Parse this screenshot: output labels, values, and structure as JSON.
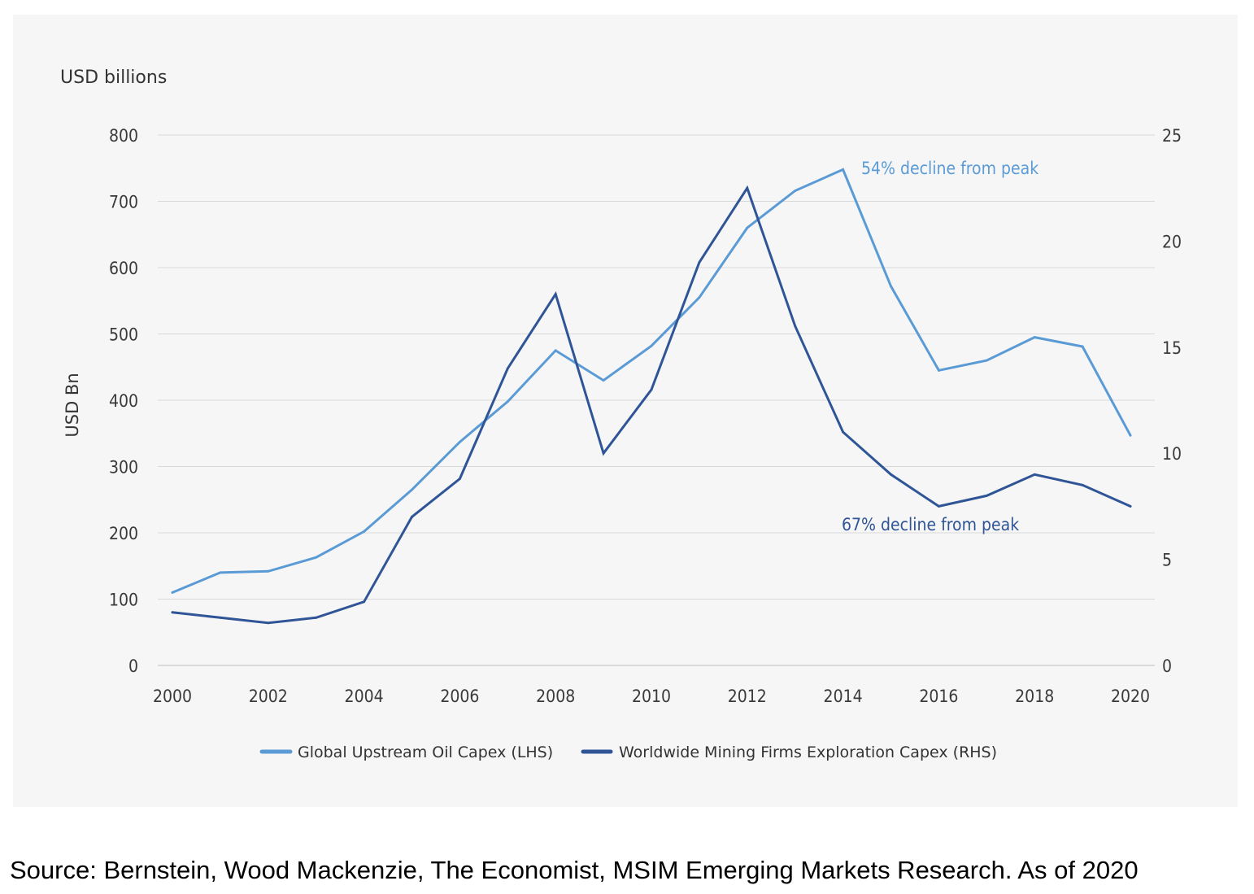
{
  "chart_data": {
    "type": "line",
    "unit_label": "USD billions",
    "ylabel": "USD Bn",
    "x": [
      2000,
      2001,
      2002,
      2003,
      2004,
      2005,
      2006,
      2007,
      2008,
      2009,
      2010,
      2011,
      2012,
      2013,
      2014,
      2015,
      2016,
      2017,
      2018,
      2019,
      2020
    ],
    "x_tick_labels": [
      "2000",
      "2002",
      "2004",
      "2006",
      "2008",
      "2010",
      "2012",
      "2014",
      "2016",
      "2018",
      "2020"
    ],
    "ylim_left": [
      0,
      800
    ],
    "y_left_ticks": [
      "0",
      "100",
      "200",
      "300",
      "400",
      "500",
      "600",
      "700",
      "800"
    ],
    "ylim_right": [
      0,
      25
    ],
    "y_right_ticks": [
      "0",
      "5",
      "10",
      "15",
      "20",
      "25"
    ],
    "grid": true,
    "legend_position": "bottom",
    "series": [
      {
        "name": "Global Upstream Oil Capex (LHS)",
        "axis": "left",
        "color": "#5b9bd5",
        "values": [
          110,
          140,
          142,
          163,
          202,
          265,
          337,
          398,
          475,
          430,
          482,
          555,
          660,
          716,
          748,
          572,
          445,
          460,
          495,
          481,
          347
        ]
      },
      {
        "name": "Worldwide Mining Firms Exploration Capex (RHS)",
        "axis": "right",
        "color": "#2f5597",
        "values": [
          2.5,
          2.25,
          2.0,
          2.25,
          3.0,
          7.0,
          8.8,
          14.0,
          17.5,
          10.0,
          13.0,
          19.0,
          22.5,
          16.0,
          11.0,
          9.0,
          7.5,
          8.0,
          9.0,
          8.5,
          7.5
        ]
      }
    ],
    "annotations": [
      {
        "text": "54% decline from peak",
        "color": "#5b9bd5"
      },
      {
        "text": "67% decline from peak",
        "color": "#2f5597"
      }
    ]
  },
  "source_note": "Source: Bernstein, Wood Mackenzie, The Economist, MSIM Emerging Markets Research. As of 2020"
}
